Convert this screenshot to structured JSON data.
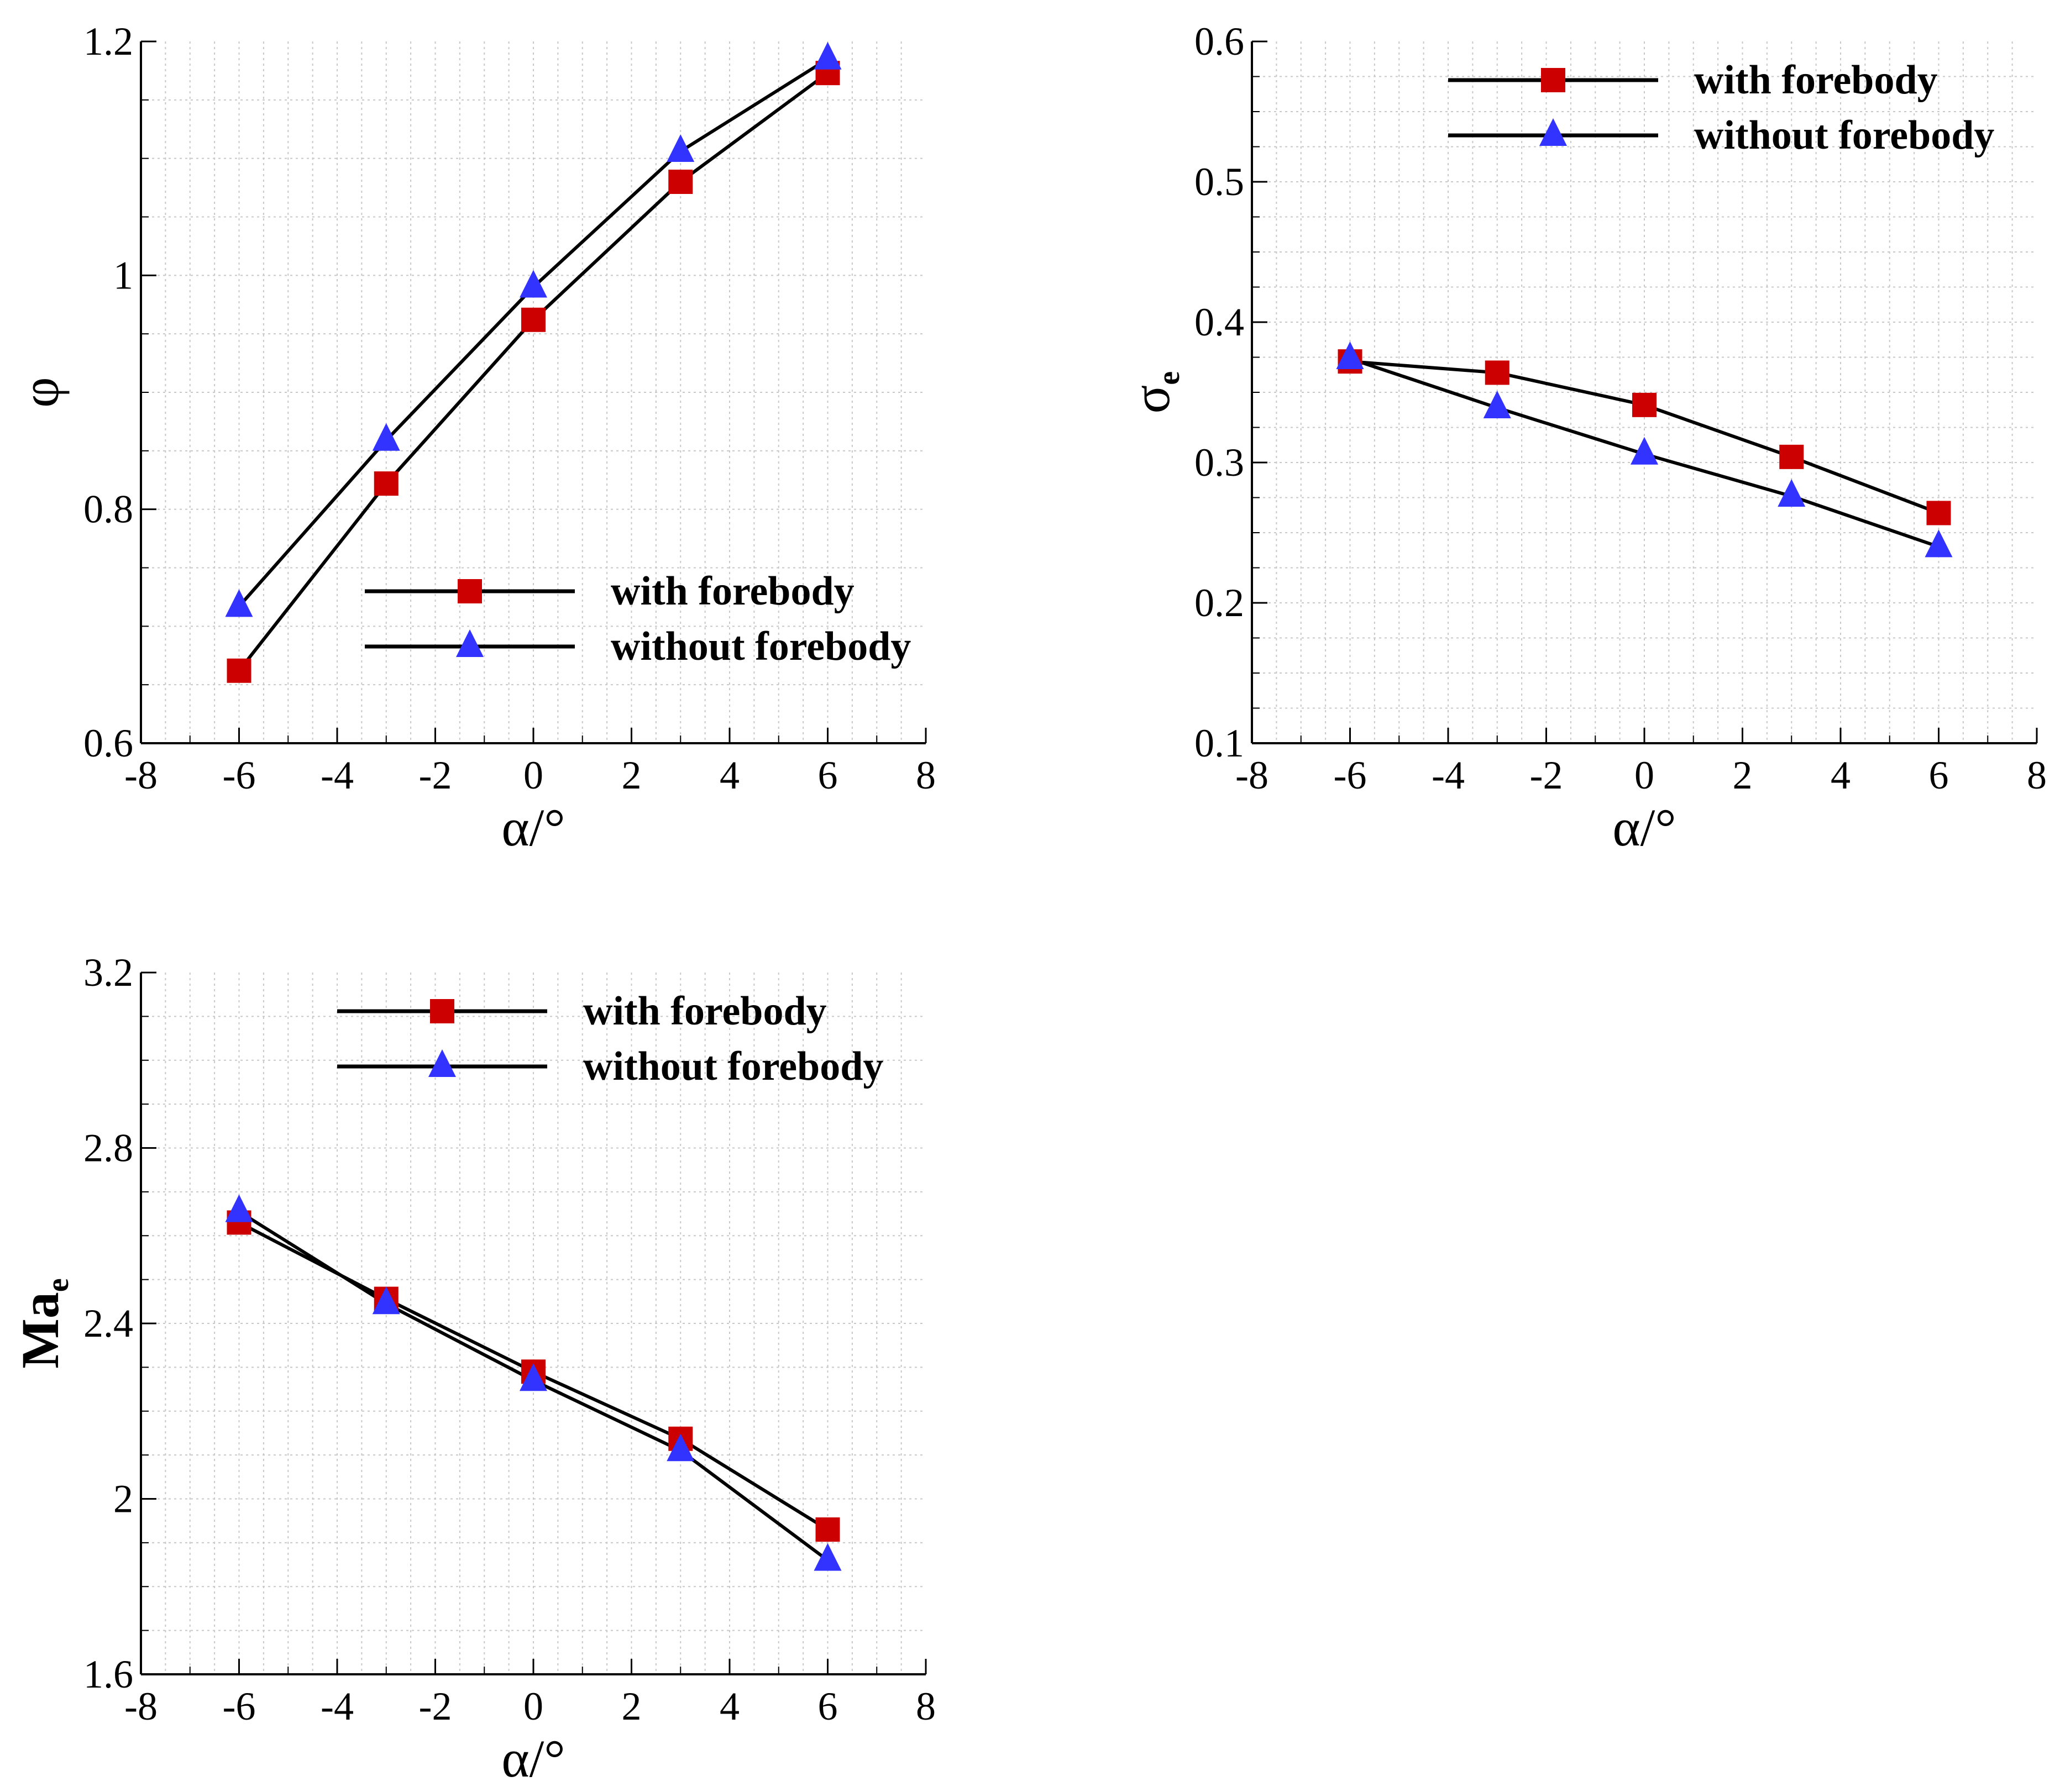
{
  "figure": {
    "description_labels": "three panels"
  },
  "colors": {
    "line": "#000000",
    "with_forebody_marker": "#cc0000",
    "without_forebody_marker": "#3333ff",
    "grid": "#c8c8c8"
  },
  "chart_data": [
    {
      "type": "line",
      "panel": "top-left",
      "xlabel": "α/°",
      "ylabel": "φ",
      "ylabel_sub": "",
      "xlim": [
        -8,
        8
      ],
      "ylim": [
        0.6,
        1.2
      ],
      "xticks": [
        -8,
        -6,
        -4,
        -2,
        0,
        2,
        4,
        6,
        8
      ],
      "xtick_labels": [
        "-8",
        "-6",
        "-4",
        "-2",
        "0",
        "2",
        "4",
        "6",
        "8"
      ],
      "yticks": [
        0.6,
        0.8,
        1.0,
        1.2
      ],
      "ytick_labels": [
        "0.6",
        "0.8",
        "1",
        "1.2"
      ],
      "grid": true,
      "legend_position": "bottom-right",
      "series": [
        {
          "name": "with forebody",
          "marker": "square",
          "x": [
            -6,
            -3,
            0,
            3,
            6
          ],
          "y": [
            0.662,
            0.822,
            0.962,
            1.08,
            1.173
          ]
        },
        {
          "name": "without forebody",
          "marker": "triangle",
          "x": [
            -6,
            -3,
            0,
            3,
            6
          ],
          "y": [
            0.717,
            0.859,
            0.99,
            1.106,
            1.185
          ]
        }
      ]
    },
    {
      "type": "line",
      "panel": "top-right",
      "xlabel": "α/°",
      "ylabel": "σ",
      "ylabel_sub": "e",
      "xlim": [
        -8,
        8
      ],
      "ylim": [
        0.1,
        0.6
      ],
      "xticks": [
        -8,
        -6,
        -4,
        -2,
        0,
        2,
        4,
        6,
        8
      ],
      "xtick_labels": [
        "-8",
        "-6",
        "-4",
        "-2",
        "0",
        "2",
        "4",
        "6",
        "8"
      ],
      "yticks": [
        0.1,
        0.2,
        0.3,
        0.4,
        0.5,
        0.6
      ],
      "ytick_labels": [
        "0.1",
        "0.2",
        "0.3",
        "0.4",
        "0.5",
        "0.6"
      ],
      "grid": true,
      "legend_position": "top-right",
      "series": [
        {
          "name": "with forebody",
          "marker": "square",
          "x": [
            -6,
            -3,
            0,
            3,
            6
          ],
          "y": [
            0.372,
            0.364,
            0.341,
            0.304,
            0.264
          ]
        },
        {
          "name": "without forebody",
          "marker": "triangle",
          "x": [
            -6,
            -3,
            0,
            3,
            6
          ],
          "y": [
            0.374,
            0.339,
            0.306,
            0.276,
            0.24
          ]
        }
      ]
    },
    {
      "type": "line",
      "panel": "bottom-left",
      "xlabel": "α/°",
      "ylabel": "Ma",
      "ylabel_sub": "e",
      "xlim": [
        -8,
        8
      ],
      "ylim": [
        1.6,
        3.2
      ],
      "xticks": [
        -8,
        -6,
        -4,
        -2,
        0,
        2,
        4,
        6,
        8
      ],
      "xtick_labels": [
        "-8",
        "-6",
        "-4",
        "-2",
        "0",
        "2",
        "4",
        "6",
        "8"
      ],
      "yticks": [
        1.6,
        2.0,
        2.4,
        2.8,
        3.2
      ],
      "ytick_labels": [
        "1.6",
        "2",
        "2.4",
        "2.8",
        "3.2"
      ],
      "grid": true,
      "legend_position": "top-right",
      "series": [
        {
          "name": "with forebody",
          "marker": "square",
          "x": [
            -6,
            -3,
            0,
            3,
            6
          ],
          "y": [
            2.63,
            2.456,
            2.29,
            2.137,
            1.93
          ]
        },
        {
          "name": "without forebody",
          "marker": "triangle",
          "x": [
            -6,
            -3,
            0,
            3,
            6
          ],
          "y": [
            2.655,
            2.445,
            2.27,
            2.11,
            1.86
          ]
        }
      ]
    }
  ]
}
